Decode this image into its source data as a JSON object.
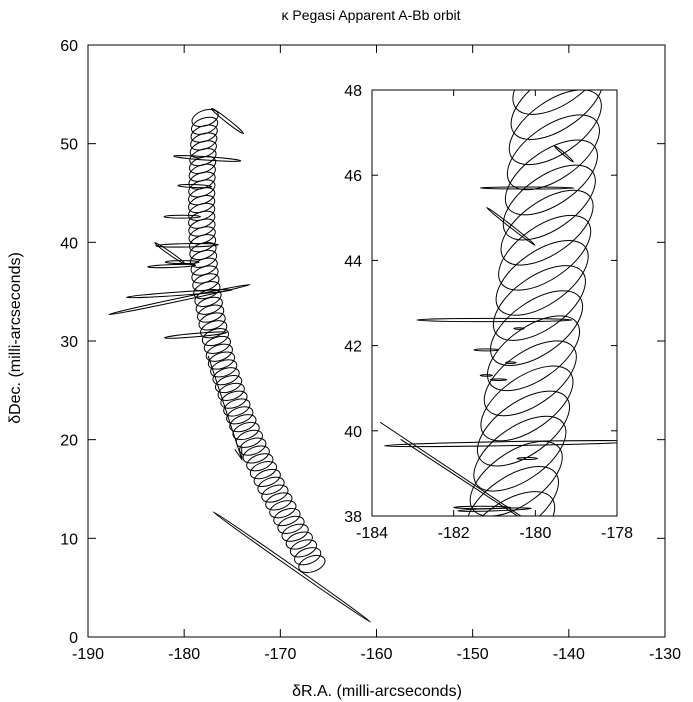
{
  "chart_data": [
    {
      "type": "line",
      "title": "κ Pegasi Apparent A-Bb orbit",
      "xlabel": "δR.A. (milli-arcseconds)",
      "ylabel": "δDec. (milli-arcseconds)",
      "xlim": [
        -190,
        -130
      ],
      "ylim": [
        0,
        60
      ],
      "x_ticks": [
        -190,
        -180,
        -170,
        -160,
        -150,
        -140,
        -130
      ],
      "y_ticks": [
        0,
        10,
        20,
        30,
        40,
        50,
        60
      ],
      "grid": false,
      "orbit_track": {
        "start": {
          "x": -166.5,
          "y": 7.0
        },
        "end": {
          "x": -177.8,
          "y": 53.0
        },
        "wobble_loops": 58
      },
      "motion_arrow": {
        "from": {
          "x": -177.5,
          "y": 28.5
        },
        "to": {
          "x": -174.0,
          "y": 18.0
        }
      },
      "error_ellipses": [
        {
          "x": -175.5,
          "y": 52.3,
          "major": 4.2,
          "minor": 0.35,
          "angle_deg": -38
        },
        {
          "x": -177.6,
          "y": 48.5,
          "major": 7.0,
          "minor": 0.35,
          "angle_deg": -4
        },
        {
          "x": -178.9,
          "y": 45.7,
          "major": 3.5,
          "minor": 0.3,
          "angle_deg": -2
        },
        {
          "x": -180.2,
          "y": 42.6,
          "major": 3.8,
          "minor": 0.3,
          "angle_deg": 0
        },
        {
          "x": -179.7,
          "y": 39.7,
          "major": 6.5,
          "minor": 0.35,
          "angle_deg": 1
        },
        {
          "x": -181.5,
          "y": 38.9,
          "major": 3.8,
          "minor": 0.3,
          "angle_deg": -35
        },
        {
          "x": -180.2,
          "y": 38.0,
          "major": 3.5,
          "minor": 0.3,
          "angle_deg": 0
        },
        {
          "x": -181.3,
          "y": 37.6,
          "major": 5.0,
          "minor": 0.3,
          "angle_deg": 2
        },
        {
          "x": -180.5,
          "y": 34.8,
          "major": 11.0,
          "minor": 0.35,
          "angle_deg": 4
        },
        {
          "x": -180.5,
          "y": 34.2,
          "major": 15.0,
          "minor": 0.3,
          "angle_deg": 12
        },
        {
          "x": -178.8,
          "y": 30.6,
          "major": 6.5,
          "minor": 0.35,
          "angle_deg": 5
        },
        {
          "x": -168.8,
          "y": 7.1,
          "major": 20.0,
          "minor": 0.3,
          "angle_deg": -35
        }
      ]
    },
    {
      "type": "line",
      "title": "",
      "xlabel": "",
      "ylabel": "",
      "xlim": [
        -184,
        -178
      ],
      "ylim": [
        38,
        48
      ],
      "x_ticks": [
        -184,
        -182,
        -180,
        -178
      ],
      "y_ticks": [
        38,
        40,
        42,
        44,
        46,
        48
      ],
      "grid": false,
      "orbit_track": {
        "start": {
          "x": -180.7,
          "y": 37.4
        },
        "end": {
          "x": -179.4,
          "y": 48.6
        },
        "wobble_loops": 19
      },
      "error_ellipses": [
        {
          "x": -179.3,
          "y": 46.5,
          "major": 0.6,
          "minor": 0.05,
          "angle_deg": -40
        },
        {
          "x": -180.2,
          "y": 45.7,
          "major": 2.3,
          "minor": 0.05,
          "angle_deg": 0
        },
        {
          "x": -180.6,
          "y": 44.8,
          "major": 1.5,
          "minor": 0.06,
          "angle_deg": -38
        },
        {
          "x": -181.0,
          "y": 42.6,
          "major": 3.8,
          "minor": 0.08,
          "angle_deg": 0
        },
        {
          "x": -181.2,
          "y": 41.9,
          "major": 0.6,
          "minor": 0.05,
          "angle_deg": 0
        },
        {
          "x": -180.4,
          "y": 42.4,
          "major": 0.25,
          "minor": 0.04,
          "angle_deg": 0
        },
        {
          "x": -180.6,
          "y": 41.6,
          "major": 0.25,
          "minor": 0.04,
          "angle_deg": 0
        },
        {
          "x": -181.2,
          "y": 41.3,
          "major": 0.3,
          "minor": 0.04,
          "angle_deg": 0
        },
        {
          "x": -180.9,
          "y": 41.2,
          "major": 0.4,
          "minor": 0.04,
          "angle_deg": 0
        },
        {
          "x": -180.6,
          "y": 39.7,
          "major": 6.2,
          "minor": 0.1,
          "angle_deg": 1
        },
        {
          "x": -180.2,
          "y": 39.35,
          "major": 0.5,
          "minor": 0.05,
          "angle_deg": 0
        },
        {
          "x": -181.3,
          "y": 38.2,
          "major": 1.4,
          "minor": 0.06,
          "angle_deg": 0
        },
        {
          "x": -181.0,
          "y": 38.15,
          "major": 1.8,
          "minor": 0.06,
          "angle_deg": 2
        }
      ],
      "crossing_lines": [
        {
          "from": {
            "x": -183.8,
            "y": 40.2
          },
          "to": {
            "x": -180.2,
            "y": 37.9
          }
        },
        {
          "from": {
            "x": -183.3,
            "y": 39.8
          },
          "to": {
            "x": -179.8,
            "y": 37.6
          }
        }
      ]
    }
  ]
}
